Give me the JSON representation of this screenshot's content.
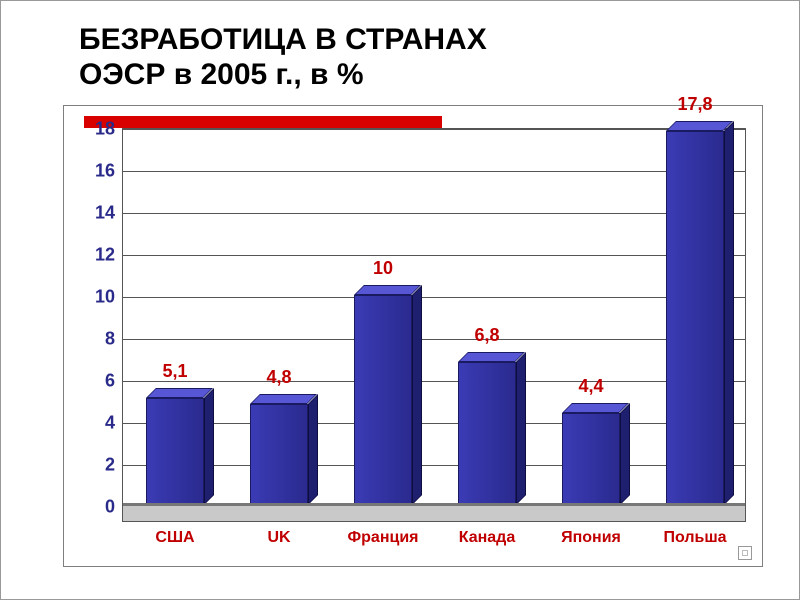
{
  "title": {
    "line1": "БЕЗРАБОТИЦА В СТРАНАХ",
    "line2": "ОЭСР в 2005 г., в %",
    "fontsize": 30,
    "color": "#000000"
  },
  "decoration": {
    "red_bar_color": "#d90000"
  },
  "chart": {
    "type": "bar",
    "background_color": "#ffffff",
    "grid_color": "#555555",
    "floor_color": "#c9c9c9",
    "border_color": "#7f7f7f",
    "bar_color_front": "#2e2ea0",
    "bar_color_top": "#5757d6",
    "bar_color_side": "#1f1f70",
    "value_label_color": "#c00000",
    "xlabel_color": "#c00000",
    "ytick_color": "#2a2a8a",
    "ytick_fontsize": 18,
    "xlabel_fontsize": 16,
    "value_fontsize": 18,
    "ylim": [
      0,
      18
    ],
    "ytick_step": 2,
    "yticks": [
      "0",
      "2",
      "4",
      "6",
      "8",
      "10",
      "12",
      "14",
      "16",
      "18"
    ],
    "categories": [
      "США",
      "UK",
      "Франция",
      "Канада",
      "Япония",
      "Польша"
    ],
    "values": [
      5.1,
      4.8,
      10,
      6.8,
      4.4,
      17.8
    ],
    "value_labels": [
      "5,1",
      "4,8",
      "10",
      "6,8",
      "4,4",
      "17,8"
    ],
    "bar_width_ratio": 0.55
  }
}
